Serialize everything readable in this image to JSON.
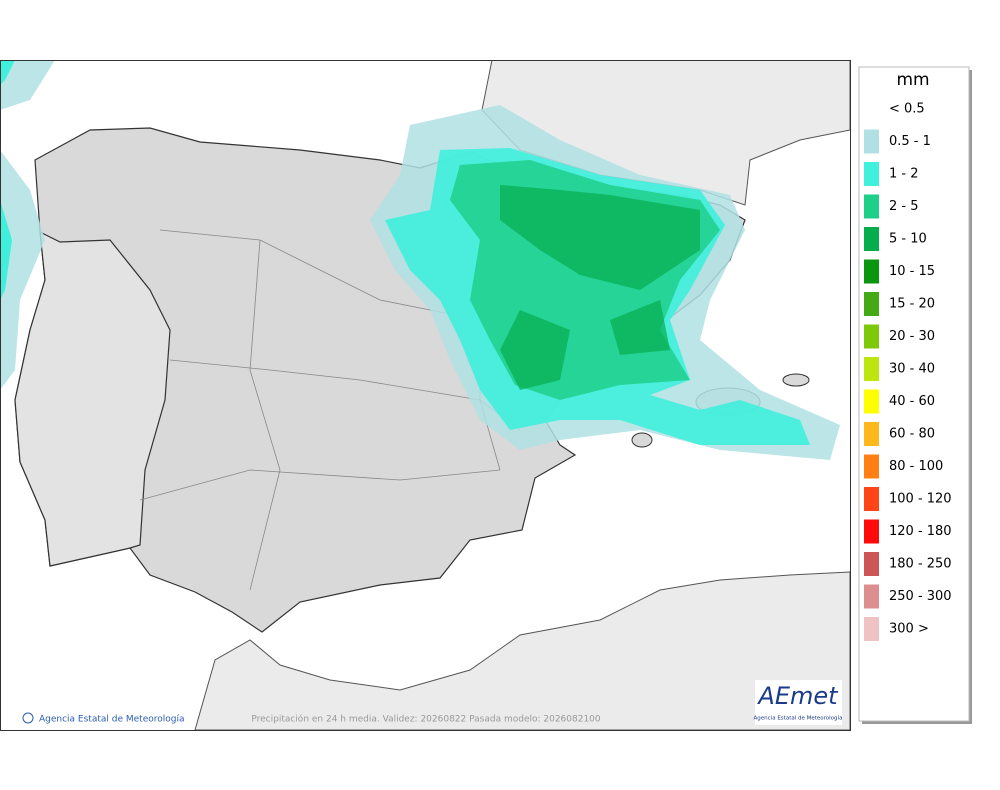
{
  "map": {
    "footer": "Precipitación en 24 h media. Validez: 20260822 Pasada modelo: 2026082100",
    "credit": "Agencia Estatal de Meteorología",
    "logo": {
      "name": "AEmet",
      "subtitle": "Agencia Estatal de Meteorología"
    }
  },
  "legend": {
    "title": "mm",
    "items": [
      {
        "label": "< 0.5"
      },
      {
        "label": "0.5 - 1",
        "color": "#b0e0e3"
      },
      {
        "label": "1 - 2",
        "color": "#3ff0dc"
      },
      {
        "label": "2 - 5",
        "color": "#1ecf8a"
      },
      {
        "label": "5 - 10",
        "color": "#05ad4c"
      },
      {
        "label": "10 - 15",
        "color": "#0a960f"
      },
      {
        "label": "15 - 20",
        "color": "#44a915"
      },
      {
        "label": "20 - 30",
        "color": "#7cc809"
      },
      {
        "label": "30 - 40",
        "color": "#bde60e"
      },
      {
        "label": "40 - 60",
        "color": "#ffff00"
      },
      {
        "label": "60 - 80",
        "color": "#ffb81c"
      },
      {
        "label": "80 - 100",
        "color": "#ff7f14"
      },
      {
        "label": "100 - 120",
        "color": "#ff4517"
      },
      {
        "label": "120 - 180",
        "color": "#ff0a0a"
      },
      {
        "label": "180 - 250",
        "color": "#cc5555"
      },
      {
        "label": "250 - 300",
        "color": "#dd8f8f"
      },
      {
        "label": "300 >",
        "color": "#efc3c3"
      }
    ]
  }
}
